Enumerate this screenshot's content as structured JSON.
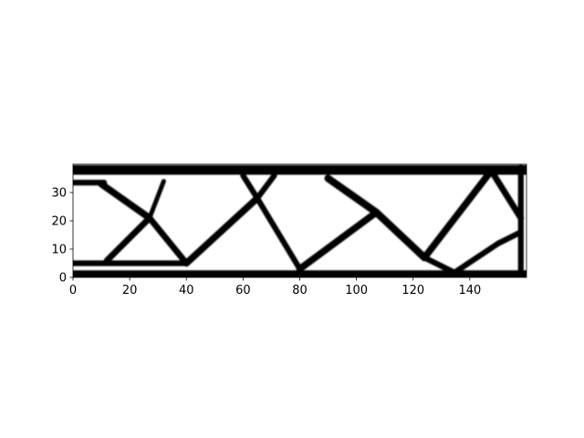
{
  "chart_data": {
    "type": "heatmap",
    "title": "",
    "xlabel": "",
    "ylabel": "",
    "xlim": [
      0,
      160
    ],
    "ylim": [
      0,
      40
    ],
    "x_ticks": [
      0,
      20,
      40,
      60,
      80,
      100,
      120,
      140
    ],
    "y_ticks": [
      0,
      10,
      20,
      30
    ],
    "colormap": "gray_r",
    "grid": false,
    "image_description_members": [
      {
        "from": [
          0,
          38
        ],
        "to": [
          160,
          38
        ],
        "w": 3.4
      },
      {
        "from": [
          0,
          1
        ],
        "to": [
          160,
          1
        ],
        "w": 3.0
      },
      {
        "from": [
          0,
          5
        ],
        "to": [
          40,
          5
        ],
        "w": 2.0
      },
      {
        "from": [
          0,
          33.5
        ],
        "to": [
          11,
          33.5
        ],
        "w": 2.0
      },
      {
        "from": [
          158,
          0
        ],
        "to": [
          158,
          39
        ],
        "w": 2.0
      },
      {
        "from": [
          10,
          33
        ],
        "to": [
          27,
          21
        ],
        "w": 2.4
      },
      {
        "from": [
          12,
          6
        ],
        "to": [
          27,
          21
        ],
        "w": 2.2
      },
      {
        "from": [
          27,
          21
        ],
        "to": [
          32,
          34
        ],
        "w": 1.6
      },
      {
        "from": [
          27,
          21
        ],
        "to": [
          40,
          5
        ],
        "w": 2.2
      },
      {
        "from": [
          40,
          5
        ],
        "to": [
          65,
          28
        ],
        "w": 2.4
      },
      {
        "from": [
          65,
          28
        ],
        "to": [
          60,
          36
        ],
        "w": 2.0
      },
      {
        "from": [
          65,
          28
        ],
        "to": [
          71,
          36
        ],
        "w": 2.0
      },
      {
        "from": [
          65,
          28
        ],
        "to": [
          80,
          3
        ],
        "w": 2.0
      },
      {
        "from": [
          80,
          3
        ],
        "to": [
          107,
          23
        ],
        "w": 2.4
      },
      {
        "from": [
          90,
          35
        ],
        "to": [
          107,
          23
        ],
        "w": 2.6
      },
      {
        "from": [
          107,
          23
        ],
        "to": [
          124,
          7
        ],
        "w": 2.6
      },
      {
        "from": [
          124,
          7
        ],
        "to": [
          147,
          37
        ],
        "w": 2.4
      },
      {
        "from": [
          124,
          7
        ],
        "to": [
          134,
          2
        ],
        "w": 2.0
      },
      {
        "from": [
          148,
          37
        ],
        "to": [
          158,
          21
        ],
        "w": 2.2
      },
      {
        "from": [
          135,
          2
        ],
        "to": [
          150,
          12
        ],
        "w": 2.0
      },
      {
        "from": [
          150,
          12
        ],
        "to": [
          158,
          16
        ],
        "w": 2.0
      }
    ]
  }
}
